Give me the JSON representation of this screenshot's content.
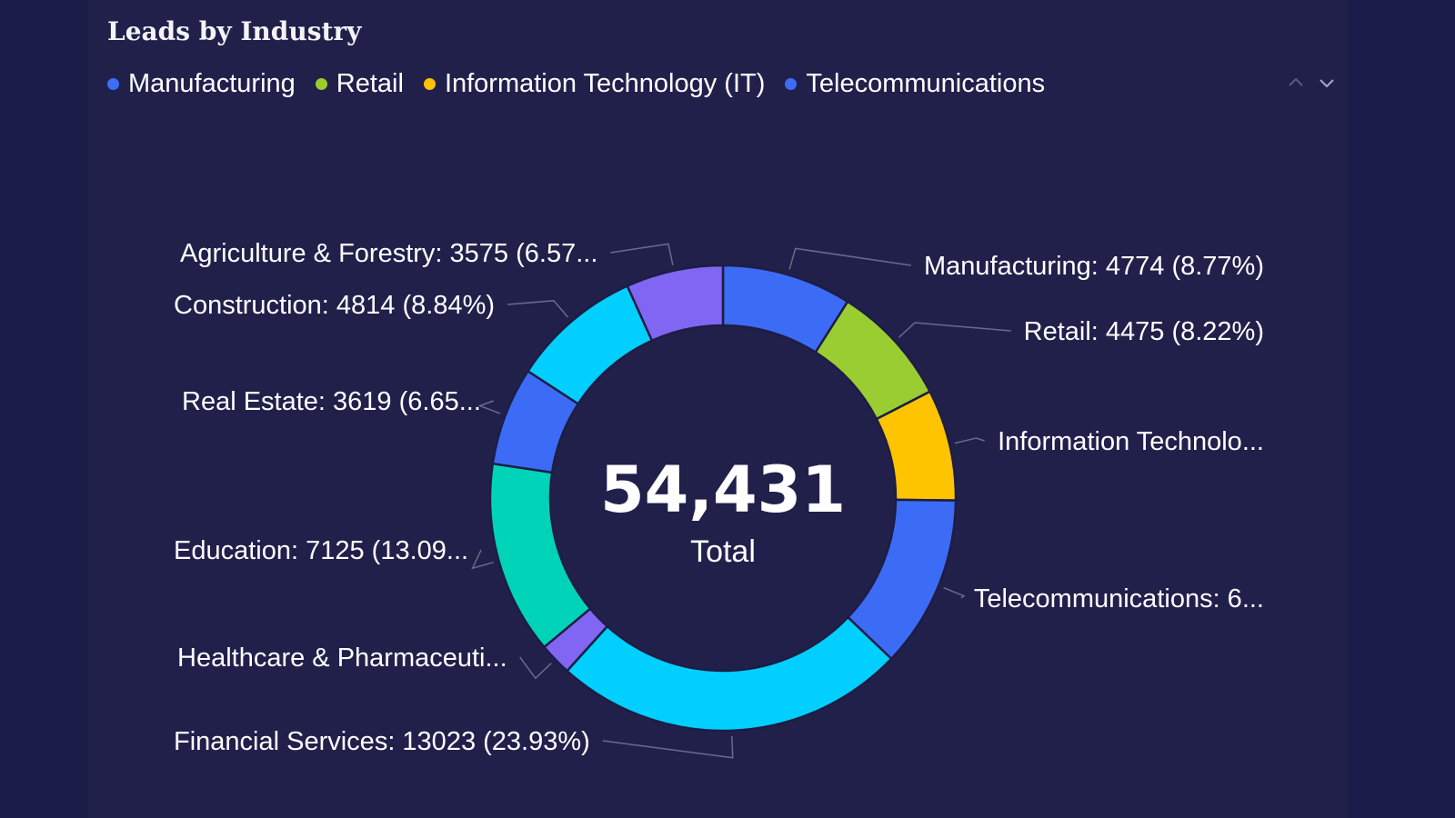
{
  "title": "Leads by Industry",
  "legend": {
    "items": [
      {
        "label": "Manufacturing",
        "color": "#3b6ef5"
      },
      {
        "label": "Retail",
        "color": "#9ccb2c"
      },
      {
        "label": "Information Technology (IT)",
        "color": "#ffc107"
      },
      {
        "label": "Telecommunications",
        "color": "#3b6ef5"
      }
    ],
    "nav": {
      "up_icon": "chevron-up-icon",
      "down_icon": "chevron-down-icon"
    }
  },
  "center": {
    "value": "54,431",
    "label": "Total"
  },
  "chart_data": {
    "type": "pie",
    "style": "donut",
    "total": 54431,
    "title": "Leads by Industry",
    "slices": [
      {
        "name": "Manufacturing",
        "value": 4774,
        "percent": 8.77,
        "color": "#3c6cf6",
        "label": "Manufacturing: 4774 (8.77%)"
      },
      {
        "name": "Retail",
        "value": 4475,
        "percent": 8.22,
        "color": "#9acd32",
        "label": "Retail: 4475 (8.22%)"
      },
      {
        "name": "Information Technology (IT)",
        "value": 4100,
        "percent": 7.53,
        "color": "#ffc400",
        "label": "Information Technolo..."
      },
      {
        "name": "Telecommunications",
        "value": 6350,
        "percent": 11.67,
        "color": "#3c6cf6",
        "label": "Telecommunications: 6..."
      },
      {
        "name": "Financial Services",
        "value": 13023,
        "percent": 23.93,
        "color": "#00cfff",
        "label": "Financial Services: 13023 (23.93%)"
      },
      {
        "name": "Healthcare & Pharmaceuticals",
        "value": 1200,
        "percent": 2.2,
        "color": "#8066f2",
        "label": "Healthcare & Pharmaceuti..."
      },
      {
        "name": "Education",
        "value": 7125,
        "percent": 13.09,
        "color": "#00d4b8",
        "label": "Education: 7125 (13.09..."
      },
      {
        "name": "Real Estate",
        "value": 3619,
        "percent": 6.65,
        "color": "#3c6cf6",
        "label": "Real Estate: 3619 (6.65..."
      },
      {
        "name": "Construction",
        "value": 4814,
        "percent": 8.84,
        "color": "#00cfff",
        "label": "Construction: 4814 (8.84%)"
      },
      {
        "name": "Agriculture & Forestry",
        "value": 3575,
        "percent": 6.57,
        "color": "#8066f2",
        "label": "Agriculture & Forestry: 3575 (6.57..."
      }
    ],
    "legend_position": "top-left"
  }
}
